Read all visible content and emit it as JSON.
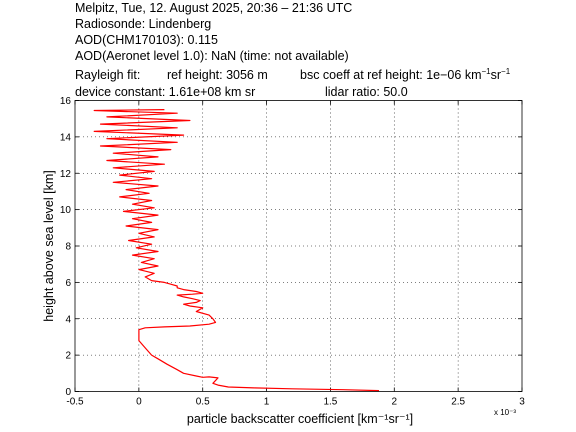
{
  "header": {
    "line1": "Melpitz, Tue, 12. August 2025, 20:36 – 21:36 UTC",
    "line2": "Radiosonde: Lindenberg",
    "line3": "AOD(CHM170103): 0.115",
    "line4": "AOD(Aeronet level 1.0): NaN   (time: not available)",
    "rayleigh_prefix": "Rayleigh fit:",
    "ref_height": "ref height: 3056 m",
    "bsc_prefix": "bsc coeff at ref height: 1e−06 km",
    "bsc_exp1": "−1",
    "bsc_mid": "sr",
    "bsc_exp2": "−1",
    "device_constant": "device constant: 1.61e+08 km sr",
    "lidar_ratio": "lidar ratio: 50.0"
  },
  "chart_data": {
    "type": "line",
    "title": "",
    "xlabel": "particle backscatter coefficient [km⁻¹sr⁻¹]",
    "ylabel": "height above sea level [km]",
    "x_multiplier_label": "x 10⁻³",
    "xlim": [
      -0.5,
      3
    ],
    "ylim": [
      0,
      16
    ],
    "xticks": [
      "-0.5",
      "0",
      "0.5",
      "1",
      "1.5",
      "2",
      "2.5",
      "3"
    ],
    "xtick_values": [
      -0.5,
      0,
      0.5,
      1,
      1.5,
      2,
      2.5,
      3
    ],
    "yticks": [
      "0",
      "2",
      "4",
      "6",
      "8",
      "10",
      "12",
      "14",
      "16"
    ],
    "ytick_values": [
      0,
      2,
      4,
      6,
      8,
      10,
      12,
      14,
      16
    ],
    "grid": true,
    "series": [
      {
        "color": "#ff0000",
        "points": [
          [
            1.88,
            0.05
          ],
          [
            1.6,
            0.1
          ],
          [
            1.2,
            0.15
          ],
          [
            0.9,
            0.2
          ],
          [
            0.7,
            0.25
          ],
          [
            0.62,
            0.35
          ],
          [
            0.58,
            0.45
          ],
          [
            0.6,
            0.6
          ],
          [
            0.62,
            0.75
          ],
          [
            0.55,
            0.8
          ],
          [
            0.5,
            0.78
          ],
          [
            0.45,
            0.85
          ],
          [
            0.35,
            1.0
          ],
          [
            0.3,
            1.2
          ],
          [
            0.22,
            1.5
          ],
          [
            0.15,
            1.8
          ],
          [
            0.1,
            2.0
          ],
          [
            0.05,
            2.4
          ],
          [
            0.0,
            2.8
          ],
          [
            0.0,
            3.2
          ],
          [
            0.0,
            3.4
          ],
          [
            0.05,
            3.5
          ],
          [
            0.2,
            3.55
          ],
          [
            0.4,
            3.6
          ],
          [
            0.55,
            3.7
          ],
          [
            0.6,
            3.8
          ],
          [
            0.58,
            4.0
          ],
          [
            0.55,
            4.2
          ],
          [
            0.45,
            4.4
          ],
          [
            0.5,
            4.6
          ],
          [
            0.4,
            4.7
          ],
          [
            0.35,
            4.8
          ],
          [
            0.45,
            4.9
          ],
          [
            0.48,
            5.0
          ],
          [
            0.42,
            5.1
          ],
          [
            0.35,
            5.2
          ],
          [
            0.3,
            5.3
          ],
          [
            0.42,
            5.35
          ],
          [
            0.5,
            5.4
          ],
          [
            0.45,
            5.5
          ],
          [
            0.35,
            5.6
          ],
          [
            0.3,
            5.7
          ],
          [
            0.3,
            5.8
          ],
          [
            0.25,
            5.9
          ],
          [
            0.2,
            6.0
          ],
          [
            0.1,
            6.1
          ],
          [
            0.05,
            6.3
          ],
          [
            0.12,
            6.5
          ],
          [
            0.0,
            6.7
          ],
          [
            0.15,
            6.9
          ],
          [
            0.02,
            7.1
          ],
          [
            0.12,
            7.3
          ],
          [
            -0.05,
            7.5
          ],
          [
            0.15,
            7.7
          ],
          [
            -0.02,
            7.9
          ],
          [
            0.1,
            8.1
          ],
          [
            -0.08,
            8.3
          ],
          [
            0.12,
            8.5
          ],
          [
            0.0,
            8.7
          ],
          [
            0.15,
            8.9
          ],
          [
            -0.1,
            9.1
          ],
          [
            0.1,
            9.3
          ],
          [
            -0.05,
            9.5
          ],
          [
            0.15,
            9.7
          ],
          [
            -0.12,
            9.9
          ],
          [
            0.12,
            10.1
          ],
          [
            -0.05,
            10.3
          ],
          [
            0.1,
            10.5
          ],
          [
            -0.15,
            10.7
          ],
          [
            0.08,
            10.9
          ],
          [
            -0.1,
            11.1
          ],
          [
            0.15,
            11.3
          ],
          [
            -0.2,
            11.5
          ],
          [
            0.1,
            11.7
          ],
          [
            -0.15,
            11.9
          ],
          [
            0.12,
            12.1
          ],
          [
            -0.2,
            12.3
          ],
          [
            0.2,
            12.5
          ],
          [
            -0.25,
            12.7
          ],
          [
            0.15,
            12.9
          ],
          [
            -0.2,
            13.1
          ],
          [
            0.25,
            13.3
          ],
          [
            -0.3,
            13.5
          ],
          [
            0.3,
            13.7
          ],
          [
            -0.25,
            13.9
          ],
          [
            0.35,
            14.1
          ],
          [
            -0.35,
            14.3
          ],
          [
            0.3,
            14.5
          ],
          [
            -0.3,
            14.7
          ],
          [
            0.4,
            14.9
          ],
          [
            -0.25,
            15.1
          ],
          [
            0.3,
            15.3
          ],
          [
            -0.35,
            15.45
          ],
          [
            0.2,
            15.5
          ]
        ]
      }
    ]
  }
}
